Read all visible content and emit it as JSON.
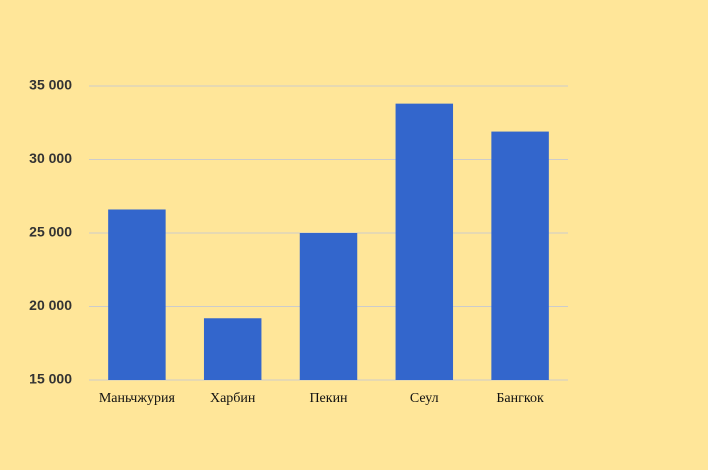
{
  "chart_data": {
    "type": "bar",
    "categories": [
      "Маньчжурия",
      "Харбин",
      "Пекин",
      "Сеул",
      "Бангкок"
    ],
    "values": [
      26600,
      19200,
      25000,
      33800,
      31900
    ],
    "color": "#3366cc",
    "ylim": [
      15000,
      35000
    ],
    "yticks": [
      {
        "value": 15000,
        "label": "15 000"
      },
      {
        "value": 20000,
        "label": "20 000"
      },
      {
        "value": 25000,
        "label": "25 000"
      },
      {
        "value": 30000,
        "label": "30 000"
      },
      {
        "value": 35000,
        "label": "35 000"
      }
    ],
    "grid": true
  }
}
